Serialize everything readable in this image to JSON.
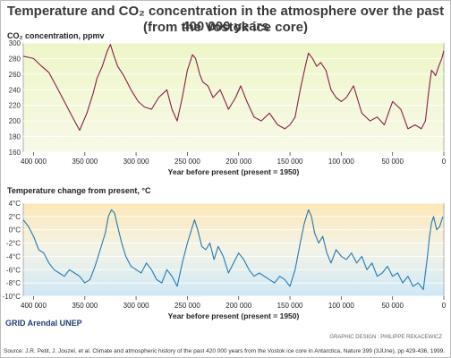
{
  "header": {
    "title_line1": "Temperature and CO₂ concentration in the atmosphere over the past 400 000 years",
    "title_line2": "(from the Vostok ice core)"
  },
  "footer": {
    "logo": "GRID Arendal  UNEP",
    "credit": "GRAPHIC DESIGN : PHILIPPE REKACEWICZ",
    "source": "Source: J.R. Petit, J. Jouzel, et al. Climate and atmospheric history of the past 420 000 years from the Vostok ice core in Antarctica, Nature 399 (3JUne), pp 429-436, 1999."
  },
  "colors": {
    "co2_line": "#8b1d4b",
    "temp_line": "#1f7ab8",
    "co2_bg_top": "#eef6c8",
    "co2_bg_bottom": "#f6f8d8",
    "temp_bg_top": "#fde7b8",
    "temp_bg_bottom": "#cfe8f6"
  },
  "chart_data": [
    {
      "type": "line",
      "ylabel": "CO₂ concentration, ppmv",
      "xlabel": "Year before present (present = 1950)",
      "xlim": [
        410000,
        0
      ],
      "ylim": [
        160,
        300
      ],
      "xticks": [
        400000,
        350000,
        300000,
        250000,
        200000,
        150000,
        100000,
        50000,
        0
      ],
      "xtick_labels": [
        "400 000",
        "350 000",
        "300 000",
        "250 000",
        "200 000",
        "150 000",
        "100 000",
        "50 000",
        "0"
      ],
      "yticks": [
        160,
        180,
        200,
        220,
        240,
        260,
        280,
        300
      ],
      "ytick_labels": [
        "160",
        "180",
        "200",
        "220",
        "240",
        "260",
        "280",
        "300"
      ],
      "grid": true,
      "series": [
        {
          "x": [
            410000,
            400000,
            392000,
            385000,
            378000,
            370000,
            362000,
            355000,
            348000,
            342000,
            338000,
            333000,
            328000,
            325000,
            322000,
            318000,
            312000,
            305000,
            298000,
            292000,
            285000,
            278000,
            270000,
            265000,
            260000,
            255000,
            250000,
            245000,
            242000,
            238000,
            235000,
            230000,
            225000,
            218000,
            210000,
            203000,
            198000,
            192000,
            185000,
            178000,
            170000,
            162000,
            155000,
            150000,
            145000,
            140000,
            135000,
            132000,
            128000,
            124000,
            120000,
            115000,
            110000,
            105000,
            100000,
            95000,
            88000,
            80000,
            72000,
            65000,
            58000,
            50000,
            42000,
            35000,
            28000,
            22000,
            18000,
            15000,
            12000,
            10000,
            8000,
            5000,
            2000,
            0
          ],
          "y": [
            283,
            280,
            270,
            262,
            245,
            225,
            205,
            188,
            210,
            235,
            255,
            270,
            290,
            298,
            285,
            270,
            258,
            240,
            225,
            218,
            215,
            230,
            240,
            215,
            200,
            230,
            265,
            285,
            280,
            260,
            250,
            245,
            230,
            240,
            215,
            230,
            245,
            225,
            205,
            200,
            210,
            195,
            190,
            195,
            205,
            240,
            270,
            287,
            280,
            270,
            275,
            265,
            240,
            230,
            225,
            230,
            245,
            210,
            200,
            205,
            195,
            225,
            215,
            190,
            195,
            190,
            200,
            235,
            265,
            262,
            258,
            270,
            280,
            290
          ]
        }
      ]
    },
    {
      "type": "line",
      "ylabel": "Temperature change from present, °C",
      "xlabel": "Year before present (present = 1950)",
      "xlim": [
        410000,
        0
      ],
      "ylim": [
        -10,
        4
      ],
      "xticks": [
        400000,
        350000,
        300000,
        250000,
        200000,
        150000,
        100000,
        50000,
        0
      ],
      "xtick_labels": [
        "400 000",
        "350 000",
        "300 000",
        "250 000",
        "200 000",
        "150 000",
        "100 000",
        "50 000",
        "0"
      ],
      "yticks": [
        4,
        2,
        0,
        -2,
        -4,
        -6,
        -8,
        -10
      ],
      "ytick_labels": [
        "4°C",
        "2°C",
        "0°C",
        "-2°C",
        "-4°C",
        "-6°C",
        "-8°C",
        "-10°C"
      ],
      "grid": true,
      "series": [
        {
          "x": [
            410000,
            405000,
            400000,
            395000,
            390000,
            385000,
            380000,
            375000,
            370000,
            365000,
            360000,
            355000,
            350000,
            345000,
            340000,
            335000,
            330000,
            327000,
            324000,
            321000,
            318000,
            314000,
            310000,
            305000,
            300000,
            295000,
            290000,
            285000,
            280000,
            275000,
            270000,
            265000,
            260000,
            255000,
            250000,
            245000,
            243000,
            240000,
            236000,
            232000,
            228000,
            224000,
            220000,
            215000,
            210000,
            205000,
            200000,
            195000,
            190000,
            185000,
            180000,
            175000,
            170000,
            165000,
            160000,
            155000,
            150000,
            145000,
            140000,
            136000,
            132000,
            129000,
            126000,
            122000,
            118000,
            114000,
            110000,
            105000,
            100000,
            95000,
            90000,
            85000,
            80000,
            75000,
            70000,
            65000,
            60000,
            55000,
            50000,
            45000,
            40000,
            35000,
            30000,
            25000,
            20000,
            18000,
            16000,
            14000,
            12000,
            10000,
            7000,
            4000,
            1000
          ],
          "y": [
            1.5,
            0.5,
            -1,
            -3,
            -3.5,
            -5,
            -6,
            -6.5,
            -7,
            -6,
            -6.5,
            -7,
            -8,
            -7.5,
            -5.5,
            -3,
            -0.5,
            2,
            3,
            2.5,
            0.5,
            -2,
            -4,
            -5.5,
            -6,
            -6.5,
            -5,
            -6,
            -7.5,
            -8,
            -6,
            -7,
            -8.5,
            -5,
            -2,
            0.5,
            1.5,
            0,
            -2.5,
            -3,
            -2,
            -4.5,
            -2.5,
            -4,
            -6.5,
            -5,
            -3.5,
            -4.5,
            -6,
            -7,
            -6.5,
            -7,
            -7.5,
            -8,
            -7,
            -7.5,
            -8.5,
            -6,
            -2,
            1,
            3,
            2,
            -0.5,
            -2,
            -1,
            -3.5,
            -5,
            -3,
            -4,
            -4.5,
            -3.5,
            -5,
            -4,
            -6,
            -5,
            -7,
            -6.5,
            -5.5,
            -7,
            -6.5,
            -8,
            -7,
            -8.5,
            -8,
            -9,
            -6.5,
            -4,
            -1,
            1,
            2,
            0,
            0.5,
            2
          ]
        }
      ]
    }
  ]
}
